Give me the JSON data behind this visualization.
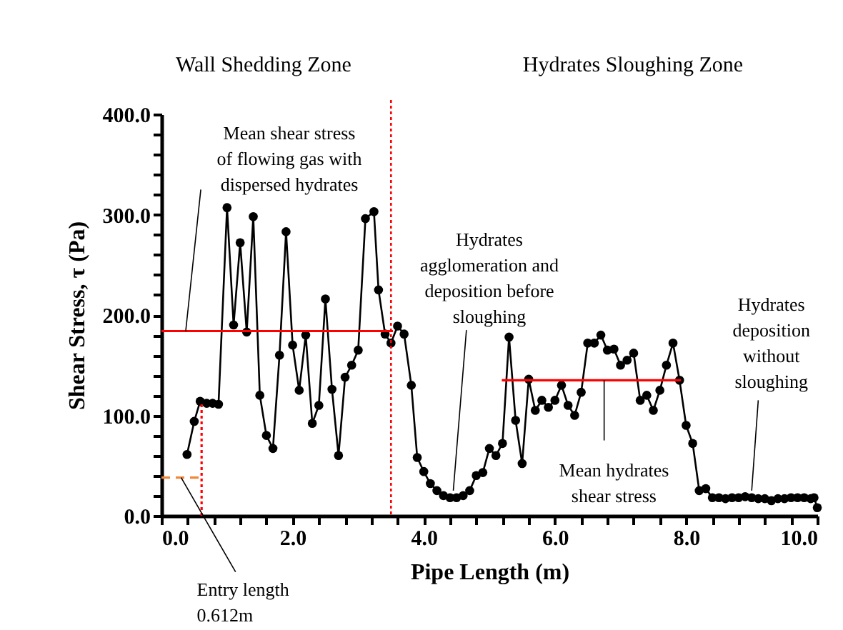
{
  "chart_data": {
    "type": "line",
    "xlabel": "Pipe Length (m)",
    "ylabel": "Shear Stress, τ (Pa)",
    "xlim": [
      0,
      10
    ],
    "ylim": [
      0,
      400
    ],
    "xticks": [
      {
        "value": 0,
        "label": "0.0"
      },
      {
        "value": 0.4,
        "label": null
      },
      {
        "value": 0.8,
        "label": null
      },
      {
        "value": 1.2,
        "label": null
      },
      {
        "value": 1.6,
        "label": null
      },
      {
        "value": 2,
        "label": "2.0"
      },
      {
        "value": 2.4,
        "label": null
      },
      {
        "value": 2.8,
        "label": null
      },
      {
        "value": 3.2,
        "label": null
      },
      {
        "value": 3.6,
        "label": null
      },
      {
        "value": 4,
        "label": "4.0"
      },
      {
        "value": 4.4,
        "label": null
      },
      {
        "value": 4.8,
        "label": null
      },
      {
        "value": 5.2,
        "label": null
      },
      {
        "value": 5.6,
        "label": null
      },
      {
        "value": 6,
        "label": "6.0"
      },
      {
        "value": 6.4,
        "label": null
      },
      {
        "value": 6.8,
        "label": null
      },
      {
        "value": 7.2,
        "label": null
      },
      {
        "value": 7.6,
        "label": null
      },
      {
        "value": 8,
        "label": "8.0"
      },
      {
        "value": 8.4,
        "label": null
      },
      {
        "value": 8.8,
        "label": null
      },
      {
        "value": 9.2,
        "label": null
      },
      {
        "value": 9.6,
        "label": null
      },
      {
        "value": 10,
        "label": "10.0"
      }
    ],
    "yticks": [
      {
        "value": 0,
        "label": "0.0"
      },
      {
        "value": 20,
        "label": null
      },
      {
        "value": 40,
        "label": null
      },
      {
        "value": 60,
        "label": null
      },
      {
        "value": 80,
        "label": null
      },
      {
        "value": 100,
        "label": "100.0"
      },
      {
        "value": 120,
        "label": null
      },
      {
        "value": 140,
        "label": null
      },
      {
        "value": 160,
        "label": null
      },
      {
        "value": 180,
        "label": null
      },
      {
        "value": 200,
        "label": "200.0"
      },
      {
        "value": 220,
        "label": null
      },
      {
        "value": 240,
        "label": null
      },
      {
        "value": 260,
        "label": null
      },
      {
        "value": 280,
        "label": null
      },
      {
        "value": 300,
        "label": "300.0"
      },
      {
        "value": 320,
        "label": null
      },
      {
        "value": 340,
        "label": null
      },
      {
        "value": 360,
        "label": null
      },
      {
        "value": 380,
        "label": null
      },
      {
        "value": 400,
        "label": "400.0"
      }
    ],
    "grid": false,
    "series": [
      {
        "type": "line",
        "color": "#000000",
        "marker": "circle",
        "line_style": "solid",
        "x": [
          0.39,
          0.5,
          0.59,
          0.69,
          0.78,
          0.87,
          1.0,
          1.1,
          1.2,
          1.3,
          1.4,
          1.5,
          1.6,
          1.7,
          1.8,
          1.9,
          2.0,
          2.1,
          2.2,
          2.3,
          2.4,
          2.5,
          2.6,
          2.7,
          2.8,
          2.9,
          3.0,
          3.11,
          3.24,
          3.31,
          3.41,
          3.5,
          3.6,
          3.7,
          3.81,
          3.9,
          4.0,
          4.1,
          4.2,
          4.3,
          4.4,
          4.5,
          4.6,
          4.7,
          4.8,
          4.9,
          5.0,
          5.1,
          5.2,
          5.3,
          5.4,
          5.5,
          5.6,
          5.7,
          5.8,
          5.9,
          6.0,
          6.1,
          6.2,
          6.3,
          6.4,
          6.5,
          6.6,
          6.7,
          6.8,
          6.9,
          7.0,
          7.1,
          7.2,
          7.3,
          7.4,
          7.5,
          7.6,
          7.7,
          7.8,
          7.9,
          8.0,
          8.1,
          8.2,
          8.3,
          8.4,
          8.5,
          8.6,
          8.7,
          8.8,
          8.9,
          9.0,
          9.1,
          9.2,
          9.3,
          9.4,
          9.5,
          9.6,
          9.7,
          9.8,
          9.9,
          9.95,
          10.0
        ],
        "values": [
          61,
          94,
          114,
          112,
          112,
          111,
          307,
          190,
          272,
          183,
          298,
          120,
          80,
          67,
          160,
          283,
          170,
          125,
          180,
          92,
          110,
          216,
          126,
          60,
          138,
          150,
          165,
          296,
          303,
          225,
          181,
          172,
          189,
          181,
          130,
          58,
          44,
          32,
          25,
          20,
          18,
          18,
          20,
          25,
          40,
          43,
          67,
          60,
          72,
          178,
          95,
          52,
          136,
          105,
          115,
          108,
          115,
          130,
          110,
          100,
          123,
          172,
          172,
          180,
          165,
          166,
          150,
          155,
          162,
          115,
          120,
          105,
          125,
          150,
          172,
          135,
          90,
          72,
          25,
          27,
          18,
          18,
          17,
          18,
          18,
          19,
          18,
          17,
          17,
          15,
          17,
          17,
          18,
          18,
          18,
          17,
          18,
          8
        ]
      },
      {
        "type": "line",
        "color": "#ff0000",
        "marker": "none",
        "line_style": "solid",
        "x": [
          0,
          3.53
        ],
        "values": [
          184,
          184
        ]
      },
      {
        "type": "line",
        "color": "#ff0000",
        "marker": "none",
        "line_style": "solid",
        "x": [
          5.19,
          7.92
        ],
        "values": [
          135,
          135
        ]
      },
      {
        "type": "line",
        "color": "#ff0000",
        "marker": "none",
        "line_style": "dotted",
        "x": [
          0.612,
          0.612
        ],
        "values": [
          0,
          113
        ]
      },
      {
        "type": "line",
        "color": "#f0883a",
        "marker": "none",
        "line_style": "dashed",
        "x": [
          0,
          0.612
        ],
        "values": [
          38,
          38
        ]
      }
    ],
    "ref_lines": [
      {
        "axis": "x",
        "value": 3.5,
        "color": "#ff0000",
        "line_style": "dotted"
      }
    ],
    "annotations": [
      "Wall Shedding Zone",
      "Hydrates Sloughing Zone",
      {
        "text": "Mean shear stress\nof flowing gas with\ndispersed hydrates",
        "x": 0.37,
        "y": 184
      },
      {
        "text": "Hydrates\nagglomeration and\ndeposition before\nsloughing",
        "x": 4.45,
        "y": 25
      },
      {
        "text": "Mean hydrates\nshear stress",
        "x": 6.75,
        "y": 135
      },
      {
        "text": "Hydrates\ndeposition\nwithout\nsloughing",
        "x": 9.0,
        "y": 25
      },
      {
        "text": "Entry length\n0.612m",
        "x": 0.3,
        "y": 38
      }
    ]
  }
}
